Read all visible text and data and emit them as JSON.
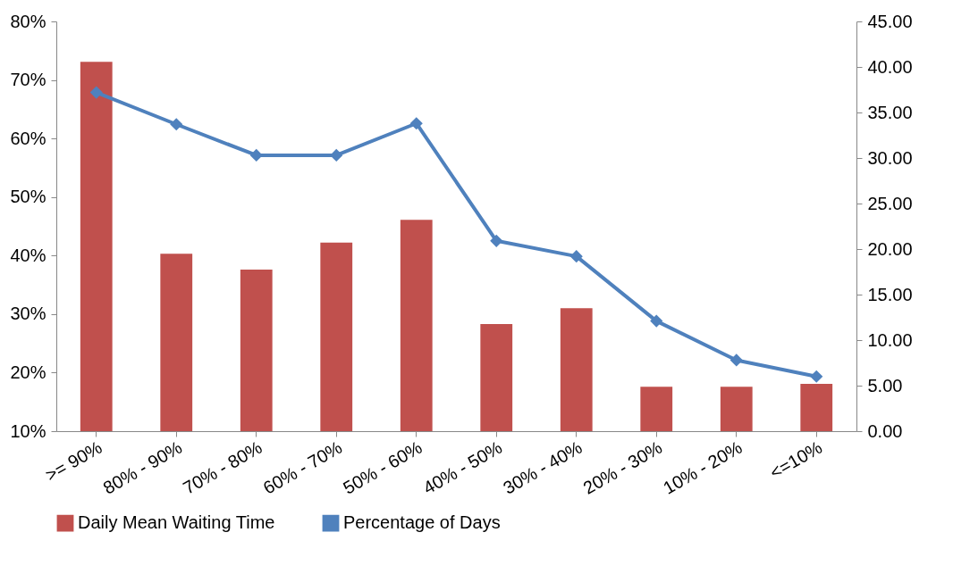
{
  "chart_data": {
    "type": "bar",
    "categories": [
      ">= 90%",
      "80% - 90%",
      "70% - 80%",
      "60% - 70%",
      "50% - 60%",
      "40% - 50%",
      "30% - 40%",
      "20% - 30%",
      "10% - 20%",
      "<=10%"
    ],
    "series": [
      {
        "name": "Daily Mean Waiting Time",
        "color": "#c0504d",
        "values": [
          73.1,
          40.3,
          37.6,
          42.2,
          46.1,
          28.3,
          31.0,
          17.6,
          17.6,
          18.1
        ]
      },
      {
        "name": "Percentage of Days",
        "type": "line",
        "axis": "y2",
        "color": "#4f81bd",
        "marker": "diamond",
        "values": [
          37.2,
          33.7,
          30.3,
          30.3,
          33.8,
          20.9,
          19.2,
          12.1,
          7.8,
          6.0
        ]
      }
    ],
    "ylim": [
      10,
      80
    ],
    "yticks": [
      {
        "value": 10,
        "label": "10%"
      },
      {
        "value": 20,
        "label": "20%"
      },
      {
        "value": 30,
        "label": "30%"
      },
      {
        "value": 40,
        "label": "40%"
      },
      {
        "value": 50,
        "label": "50%"
      },
      {
        "value": 60,
        "label": "60%"
      },
      {
        "value": 70,
        "label": "70%"
      },
      {
        "value": 80,
        "label": "80%"
      }
    ],
    "y2lim": [
      0,
      45
    ],
    "y2ticks": [
      {
        "value": 0,
        "label": "0.00"
      },
      {
        "value": 5,
        "label": "5.00"
      },
      {
        "value": 10,
        "label": "10.00"
      },
      {
        "value": 15,
        "label": "15.00"
      },
      {
        "value": 20,
        "label": "20.00"
      },
      {
        "value": 25,
        "label": "25.00"
      },
      {
        "value": 30,
        "label": "30.00"
      },
      {
        "value": 35,
        "label": "35.00"
      },
      {
        "value": 40,
        "label": "40.00"
      },
      {
        "value": 45,
        "label": "45.00"
      }
    ],
    "grid": false,
    "legend": "bottom",
    "line_style": "solid"
  }
}
